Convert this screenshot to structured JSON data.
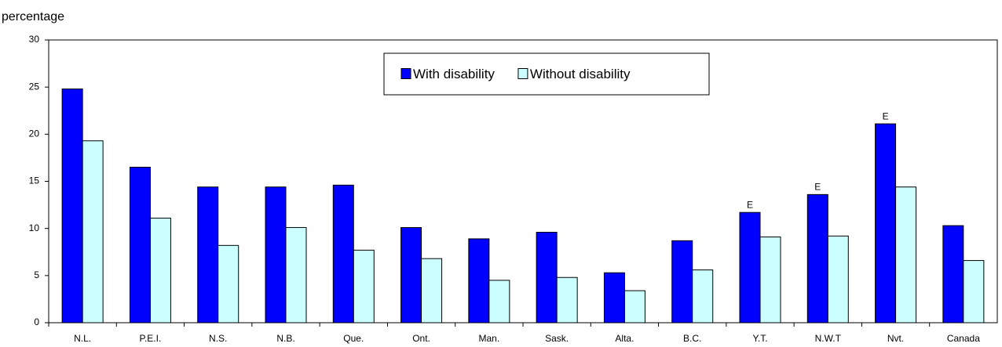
{
  "chart_data": {
    "type": "bar",
    "y_label": "percentage",
    "categories": [
      "N.L.",
      "P.E.I.",
      "N.S.",
      "N.B.",
      "Que.",
      "Ont.",
      "Man.",
      "Sask.",
      "Alta.",
      "B.C.",
      "Y.T.",
      "N.W.T",
      "Nvt.",
      "Canada"
    ],
    "series": [
      {
        "name": "With disability",
        "color": "#0000ff",
        "values": [
          24.8,
          16.5,
          14.4,
          14.4,
          14.6,
          10.1,
          8.9,
          9.6,
          5.3,
          8.7,
          11.7,
          13.6,
          21.1,
          10.3
        ],
        "flags": [
          null,
          null,
          null,
          null,
          null,
          null,
          null,
          null,
          null,
          null,
          "E",
          "E",
          "E",
          null
        ]
      },
      {
        "name": "Without disability",
        "color": "#ccffff",
        "values": [
          19.3,
          11.1,
          8.2,
          10.1,
          7.7,
          6.8,
          4.5,
          4.8,
          3.4,
          5.6,
          9.1,
          9.2,
          14.4,
          6.6
        ]
      }
    ],
    "ylim": [
      0,
      30
    ],
    "yticks": [
      0,
      5,
      10,
      15,
      20,
      25,
      30
    ],
    "grid": false,
    "legend": "top"
  }
}
